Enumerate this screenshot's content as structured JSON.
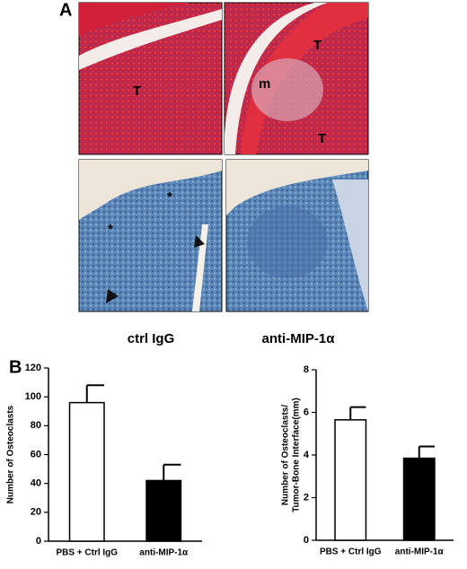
{
  "panel_a": {
    "label": "A",
    "markers": [
      "T",
      "m",
      "T",
      "T",
      "*",
      "*"
    ],
    "columns": [
      "ctrl IgG",
      "anti-MIP-1α"
    ]
  },
  "panel_b": {
    "label": "B"
  },
  "chart_data": [
    {
      "type": "bar",
      "ylabel": [
        "Number of Osteoclasts"
      ],
      "categories": [
        "PBS + Ctrl IgG",
        "anti-MIP-1α"
      ],
      "values": [
        96,
        42
      ],
      "errors": [
        12,
        11
      ],
      "colors": [
        "#ffffff",
        "#000000"
      ],
      "ylim": [
        0,
        120
      ],
      "yticks": [
        0,
        20,
        40,
        60,
        80,
        100,
        120
      ]
    },
    {
      "type": "bar",
      "ylabel": [
        "Number of Osteoclasts/",
        "Tumor-Bone Interface(mm)"
      ],
      "categories": [
        "PBS + Ctrl IgG",
        "anti-MIP-1α"
      ],
      "values": [
        5.65,
        3.85
      ],
      "errors": [
        0.6,
        0.55
      ],
      "colors": [
        "#ffffff",
        "#000000"
      ],
      "ylim": [
        0,
        8
      ],
      "yticks": [
        0,
        2,
        4,
        6,
        8
      ]
    }
  ]
}
